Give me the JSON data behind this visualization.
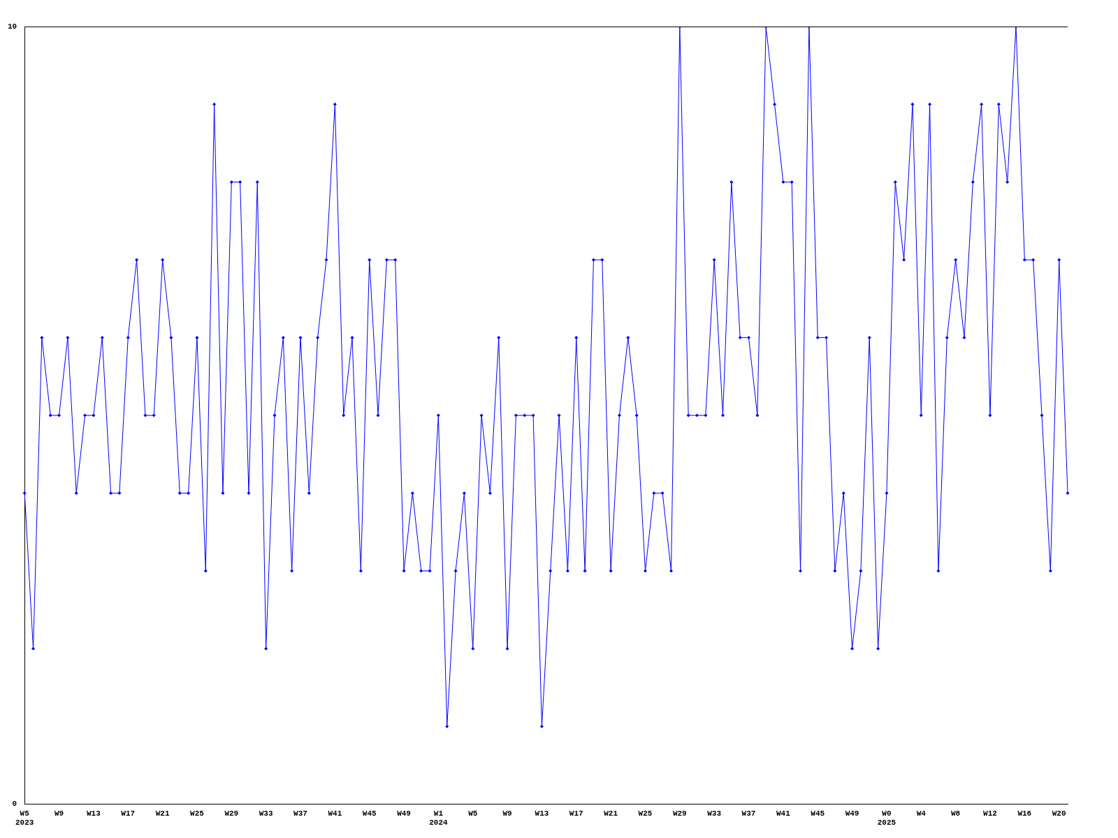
{
  "chart_data": {
    "type": "line",
    "categories": [
      "W5\n2023",
      null,
      null,
      null,
      "W9",
      null,
      null,
      null,
      "W13",
      null,
      null,
      null,
      "W17",
      null,
      null,
      null,
      "W21",
      null,
      null,
      null,
      "W25",
      null,
      null,
      null,
      "W29",
      null,
      null,
      null,
      "W33",
      null,
      null,
      null,
      "W37",
      null,
      null,
      null,
      "W41",
      null,
      null,
      null,
      "W45",
      null,
      null,
      null,
      "W49",
      null,
      null,
      null,
      "W1\n2024",
      null,
      null,
      null,
      "W5",
      null,
      null,
      null,
      "W9",
      null,
      null,
      null,
      "W13",
      null,
      null,
      null,
      "W17",
      null,
      null,
      null,
      "W21",
      null,
      null,
      null,
      "W25",
      null,
      null,
      null,
      "W29",
      null,
      null,
      null,
      "W33",
      null,
      null,
      null,
      "W37",
      null,
      null,
      null,
      "W41",
      null,
      null,
      null,
      "W45",
      null,
      null,
      null,
      "W49",
      null,
      null,
      null,
      "W0\n2025",
      null,
      null,
      null,
      "W4",
      null,
      null,
      null,
      "W8",
      null,
      null,
      null,
      "W12",
      null,
      null,
      null,
      "W16",
      null,
      null,
      null,
      "W20",
      null
    ],
    "series": [
      {
        "color": "#0000ff",
        "values": [
          4,
          2,
          6,
          5,
          5,
          6,
          4,
          5,
          5,
          6,
          4,
          4,
          6,
          7,
          5,
          5,
          7,
          6,
          4,
          4,
          6,
          3,
          9,
          4,
          8,
          8,
          4,
          8,
          2,
          5,
          6,
          3,
          6,
          4,
          6,
          7,
          9,
          5,
          6,
          3,
          7,
          5,
          7,
          7,
          3,
          4,
          3,
          3,
          5,
          1,
          3,
          4,
          2,
          5,
          4,
          6,
          2,
          5,
          5,
          5,
          1,
          3,
          5,
          3,
          6,
          3,
          7,
          7,
          3,
          5,
          6,
          5,
          3,
          4,
          4,
          3,
          10,
          5,
          5,
          5,
          7,
          5,
          8,
          6,
          6,
          5,
          10,
          9,
          8,
          8,
          3,
          10,
          6,
          6,
          3,
          4,
          2,
          3,
          6,
          2,
          4,
          8,
          7,
          9,
          5,
          9,
          3,
          6,
          7,
          6,
          8,
          9,
          5,
          9,
          8,
          10,
          7,
          7,
          5,
          3,
          7,
          4
        ]
      }
    ],
    "ylim": [
      0,
      10
    ],
    "yticks": [
      0,
      10
    ],
    "grid": false,
    "legend": false,
    "marker": "diamond",
    "line_style": "solid"
  }
}
